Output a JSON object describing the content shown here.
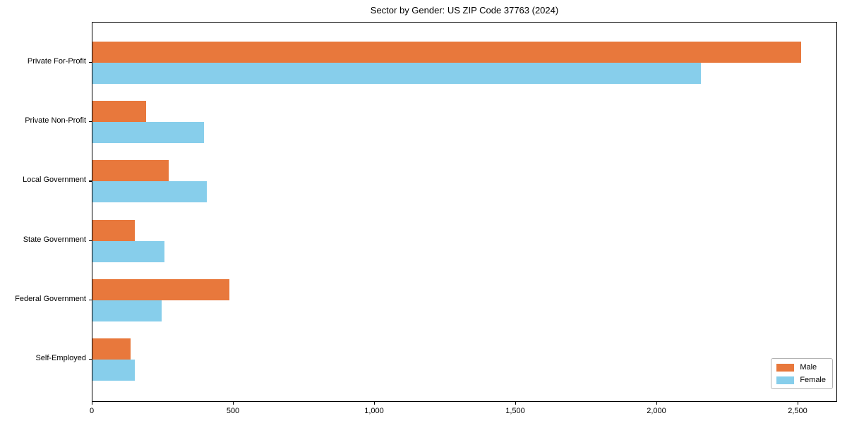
{
  "page": {
    "background": "#ffffff"
  },
  "chart_data": {
    "type": "bar",
    "orientation": "horizontal",
    "title": "Sector by Gender: US ZIP Code 37763 (2024)",
    "categories": [
      "Private For-Profit",
      "Private Non-Profit",
      "Local Government",
      "State Government",
      "Federal Government",
      "Self-Employed"
    ],
    "series": [
      {
        "name": "Male",
        "color": "#E8783C",
        "values": [
          2510,
          190,
          270,
          150,
          485,
          135
        ]
      },
      {
        "name": "Female",
        "color": "#87CEEB",
        "values": [
          2155,
          395,
          405,
          255,
          245,
          150
        ]
      }
    ],
    "xlabel": "",
    "ylabel": "",
    "xlim": [
      0,
      2640
    ],
    "xticks": [
      0,
      500,
      1000,
      1500,
      2000,
      2500
    ],
    "xtick_labels": [
      "0",
      "500",
      "1,000",
      "1,500",
      "2,000",
      "2,500"
    ],
    "legend": {
      "position": "lower-right",
      "entries": [
        "Male",
        "Female"
      ]
    },
    "grid": false,
    "axis_color": "#000000",
    "legend_border_color": "#b3b3b3"
  }
}
